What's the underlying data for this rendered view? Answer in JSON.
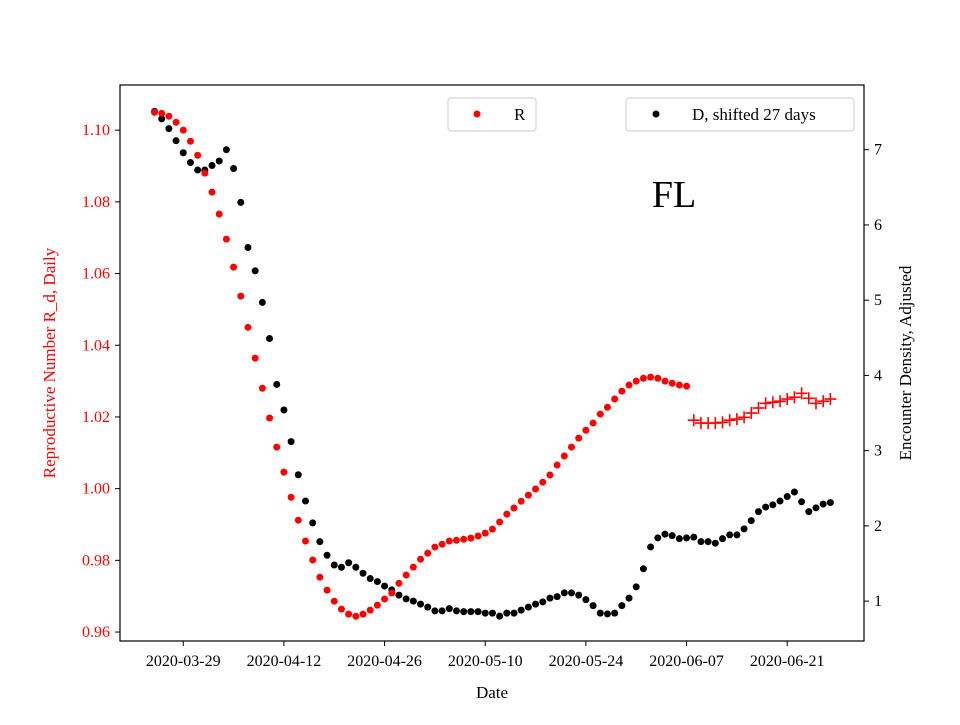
{
  "chart_data": {
    "type": "scatter",
    "annotation": "FL",
    "xlabel": "Date",
    "ylabel_left": "Reproductive Number R_d, Daily",
    "ylabel_right": "Encounter Density, Adjusted",
    "x_ticks": [
      "2020-03-29",
      "2020-04-12",
      "2020-04-26",
      "2020-05-10",
      "2020-05-24",
      "2020-06-07",
      "2020-06-21"
    ],
    "y_left_ticks": [
      "0.96",
      "0.98",
      "1.00",
      "1.02",
      "1.04",
      "1.06",
      "1.08",
      "1.10"
    ],
    "y_right_ticks": [
      "1",
      "2",
      "3",
      "4",
      "5",
      "6",
      "7"
    ],
    "y_left_lim": [
      0.9575,
      1.1126
    ],
    "y_right_lim": [
      0.47,
      7.86
    ],
    "grid": false,
    "legend_placement": "top-center and top-right",
    "colors": {
      "R": "#ff0000",
      "D": "#000000",
      "left_axis_text": "#ff0000"
    },
    "dates": [
      "2020-03-25",
      "2020-03-26",
      "2020-03-27",
      "2020-03-28",
      "2020-03-29",
      "2020-03-30",
      "2020-03-31",
      "2020-04-01",
      "2020-04-02",
      "2020-04-03",
      "2020-04-04",
      "2020-04-05",
      "2020-04-06",
      "2020-04-07",
      "2020-04-08",
      "2020-04-09",
      "2020-04-10",
      "2020-04-11",
      "2020-04-12",
      "2020-04-13",
      "2020-04-14",
      "2020-04-15",
      "2020-04-16",
      "2020-04-17",
      "2020-04-18",
      "2020-04-19",
      "2020-04-20",
      "2020-04-21",
      "2020-04-22",
      "2020-04-23",
      "2020-04-24",
      "2020-04-25",
      "2020-04-26",
      "2020-04-27",
      "2020-04-28",
      "2020-04-29",
      "2020-04-30",
      "2020-05-01",
      "2020-05-02",
      "2020-05-03",
      "2020-05-04",
      "2020-05-05",
      "2020-05-06",
      "2020-05-07",
      "2020-05-08",
      "2020-05-09",
      "2020-05-10",
      "2020-05-11",
      "2020-05-12",
      "2020-05-13",
      "2020-05-14",
      "2020-05-15",
      "2020-05-16",
      "2020-05-17",
      "2020-05-18",
      "2020-05-19",
      "2020-05-20",
      "2020-05-21",
      "2020-05-22",
      "2020-05-23",
      "2020-05-24",
      "2020-05-25",
      "2020-05-26",
      "2020-05-27",
      "2020-05-28",
      "2020-05-29",
      "2020-05-30",
      "2020-05-31",
      "2020-06-01",
      "2020-06-02",
      "2020-06-03",
      "2020-06-04",
      "2020-06-05",
      "2020-06-06",
      "2020-06-07",
      "2020-06-08",
      "2020-06-09",
      "2020-06-10",
      "2020-06-11",
      "2020-06-12",
      "2020-06-13",
      "2020-06-14",
      "2020-06-15",
      "2020-06-16",
      "2020-06-17",
      "2020-06-18",
      "2020-06-19",
      "2020-06-20",
      "2020-06-21",
      "2020-06-22",
      "2020-06-23",
      "2020-06-24",
      "2020-06-25",
      "2020-06-26",
      "2020-06-27"
    ],
    "series": [
      {
        "name": "R",
        "axis": "left",
        "marker": "dot",
        "color": "#ff0000",
        "values": [
          1.105,
          1.1047,
          1.1039,
          1.1022,
          1.1,
          1.0969,
          1.093,
          1.088,
          1.0827,
          1.0766,
          1.0696,
          1.0618,
          1.0537,
          1.045,
          1.0364,
          1.028,
          1.0197,
          1.0116,
          1.0046,
          0.9976,
          0.9912,
          0.9854,
          0.9801,
          0.9753,
          0.9717,
          0.9686,
          0.9664,
          0.965,
          0.9644,
          0.965,
          0.9661,
          0.9675,
          0.9692,
          0.9709,
          0.9736,
          0.9759,
          0.9781,
          0.9803,
          0.982,
          0.9837,
          0.9845,
          0.9854,
          0.9856,
          0.9859,
          0.9862,
          0.9868,
          0.9876,
          0.9887,
          0.9907,
          0.9929,
          0.9946,
          0.9965,
          0.9982,
          0.9999,
          1.0018,
          1.0038,
          1.0066,
          1.0091,
          1.0116,
          1.0141,
          1.0163,
          1.0183,
          1.0208,
          1.0227,
          1.025,
          1.0272,
          1.0289,
          1.03,
          1.0308,
          1.0311,
          1.0308,
          1.03,
          1.0294,
          1.0289,
          1.0286,
          null,
          null,
          null,
          null,
          null,
          null,
          null,
          null,
          null,
          null,
          null,
          null,
          null,
          null,
          null,
          null,
          null,
          null,
          null,
          null
        ]
      },
      {
        "axis": "left",
        "marker": "plus",
        "color": "#ff0000",
        "values": [
          null,
          null,
          null,
          null,
          null,
          null,
          null,
          null,
          null,
          null,
          null,
          null,
          null,
          null,
          null,
          null,
          null,
          null,
          null,
          null,
          null,
          null,
          null,
          null,
          null,
          null,
          null,
          null,
          null,
          null,
          null,
          null,
          null,
          null,
          null,
          null,
          null,
          null,
          null,
          null,
          null,
          null,
          null,
          null,
          null,
          null,
          null,
          null,
          null,
          null,
          null,
          null,
          null,
          null,
          null,
          null,
          null,
          null,
          null,
          null,
          null,
          null,
          null,
          null,
          null,
          null,
          null,
          null,
          null,
          null,
          null,
          null,
          null,
          null,
          null,
          1.0191,
          1.0183,
          1.0183,
          1.0183,
          1.0185,
          1.0191,
          1.0194,
          1.0199,
          1.0211,
          1.0225,
          1.0238,
          1.0241,
          1.0244,
          1.025,
          1.0255,
          1.0266,
          1.0252,
          1.0238,
          1.0244,
          1.025
        ]
      },
      {
        "name": "D, shifted 27 days",
        "axis": "right",
        "marker": "dot",
        "color": "#000000",
        "values": [
          7.51,
          7.41,
          7.28,
          7.12,
          6.96,
          6.83,
          6.73,
          6.73,
          6.79,
          6.85,
          7.0,
          6.75,
          6.3,
          5.7,
          5.39,
          4.97,
          4.49,
          3.88,
          3.54,
          3.12,
          2.68,
          2.33,
          2.04,
          1.79,
          1.61,
          1.48,
          1.45,
          1.51,
          1.45,
          1.37,
          1.3,
          1.26,
          1.2,
          1.15,
          1.08,
          1.03,
          1.0,
          0.96,
          0.92,
          0.87,
          0.87,
          0.9,
          0.87,
          0.86,
          0.86,
          0.86,
          0.84,
          0.84,
          0.8,
          0.84,
          0.84,
          0.88,
          0.92,
          0.96,
          0.99,
          1.04,
          1.06,
          1.11,
          1.11,
          1.08,
          1.02,
          0.94,
          0.84,
          0.83,
          0.84,
          0.94,
          1.04,
          1.19,
          1.43,
          1.72,
          1.84,
          1.89,
          1.87,
          1.83,
          1.84,
          1.85,
          1.79,
          1.79,
          1.77,
          1.83,
          1.88,
          1.88,
          1.96,
          2.07,
          2.19,
          2.25,
          2.28,
          2.33,
          2.39,
          2.45,
          2.32,
          2.19,
          2.24,
          2.29,
          2.31
        ]
      }
    ],
    "legend": {
      "r_label": "R",
      "d_label": "D, shifted 27 days"
    }
  }
}
